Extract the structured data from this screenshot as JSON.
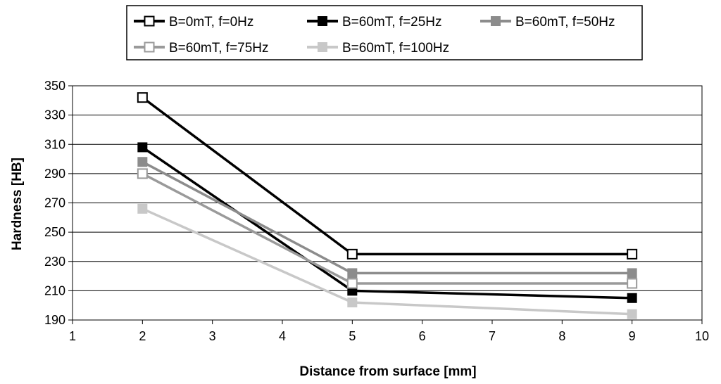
{
  "chart_data": {
    "type": "line",
    "title": "",
    "xlabel": "Distance from surface [mm]",
    "ylabel": "Hardness [HB]",
    "xlim": [
      1,
      10
    ],
    "ylim": [
      190,
      350
    ],
    "x_ticks": [
      "1",
      "2",
      "3",
      "4",
      "5",
      "6",
      "7",
      "8",
      "9",
      "10"
    ],
    "y_ticks": [
      "190",
      "210",
      "230",
      "250",
      "270",
      "290",
      "310",
      "330",
      "350"
    ],
    "grid": "horizontal",
    "legend_position": "top",
    "series": [
      {
        "name": "B=0mT, f=0Hz",
        "x": [
          2,
          5,
          9
        ],
        "y": [
          342,
          235,
          235
        ],
        "color": "#000000",
        "marker": "open-square"
      },
      {
        "name": "B=60mT, f=25Hz",
        "x": [
          2,
          5,
          9
        ],
        "y": [
          308,
          210,
          205
        ],
        "color": "#000000",
        "marker": "filled-square"
      },
      {
        "name": "B=60mT, f=50Hz",
        "x": [
          2,
          5,
          9
        ],
        "y": [
          298,
          222,
          222
        ],
        "color": "#8c8c8c",
        "marker": "filled-square"
      },
      {
        "name": "B=60mT, f=75Hz",
        "x": [
          2,
          5,
          9
        ],
        "y": [
          290,
          215,
          215
        ],
        "color": "#9a9a9a",
        "marker": "open-square"
      },
      {
        "name": "B=60mT, f=100Hz",
        "x": [
          2,
          5,
          9
        ],
        "y": [
          266,
          202,
          194
        ],
        "color": "#c8c8c8",
        "marker": "filled-square"
      }
    ]
  }
}
